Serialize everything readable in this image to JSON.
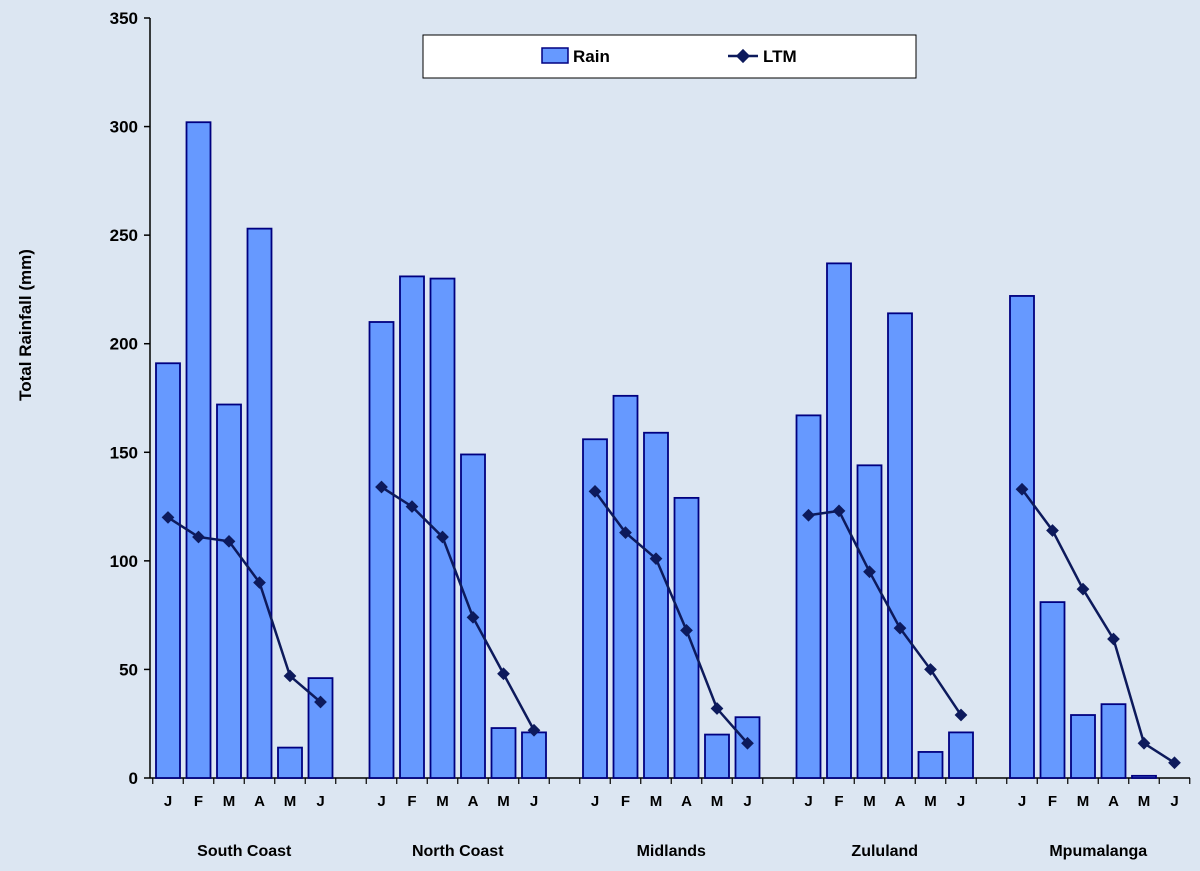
{
  "chart_data": {
    "type": "bar",
    "ylabel": "Total Rainfall (mm)",
    "xlabel": "",
    "ylim": [
      0,
      350
    ],
    "yticks": [
      0,
      50,
      100,
      150,
      200,
      250,
      300,
      350
    ],
    "grid": false,
    "legend_position": "top-center",
    "colors": {
      "background": "#dce6f2",
      "bar_fill": "#6699ff",
      "bar_stroke": "#000080",
      "line": "#0d1a5c"
    },
    "months": [
      "J",
      "F",
      "M",
      "A",
      "M",
      "J"
    ],
    "groups": [
      {
        "name": "South Coast",
        "rain": [
          191,
          302,
          172,
          253,
          14,
          46
        ],
        "ltm": [
          120,
          111,
          109,
          90,
          47,
          35
        ]
      },
      {
        "name": "North Coast",
        "rain": [
          210,
          231,
          230,
          149,
          23,
          21
        ],
        "ltm": [
          134,
          125,
          111,
          74,
          48,
          22
        ]
      },
      {
        "name": "Midlands",
        "rain": [
          156,
          176,
          159,
          129,
          20,
          28
        ],
        "ltm": [
          132,
          113,
          101,
          68,
          32,
          16
        ]
      },
      {
        "name": "Zululand",
        "rain": [
          167,
          237,
          144,
          214,
          12,
          21
        ],
        "ltm": [
          121,
          123,
          95,
          69,
          50,
          29
        ]
      },
      {
        "name": "Mpumalanga",
        "rain": [
          222,
          81,
          29,
          34,
          1,
          null
        ],
        "ltm": [
          133,
          114,
          87,
          64,
          16,
          7
        ]
      }
    ],
    "series": [
      {
        "name": "Rain",
        "type": "bar"
      },
      {
        "name": "LTM",
        "type": "line"
      }
    ]
  }
}
